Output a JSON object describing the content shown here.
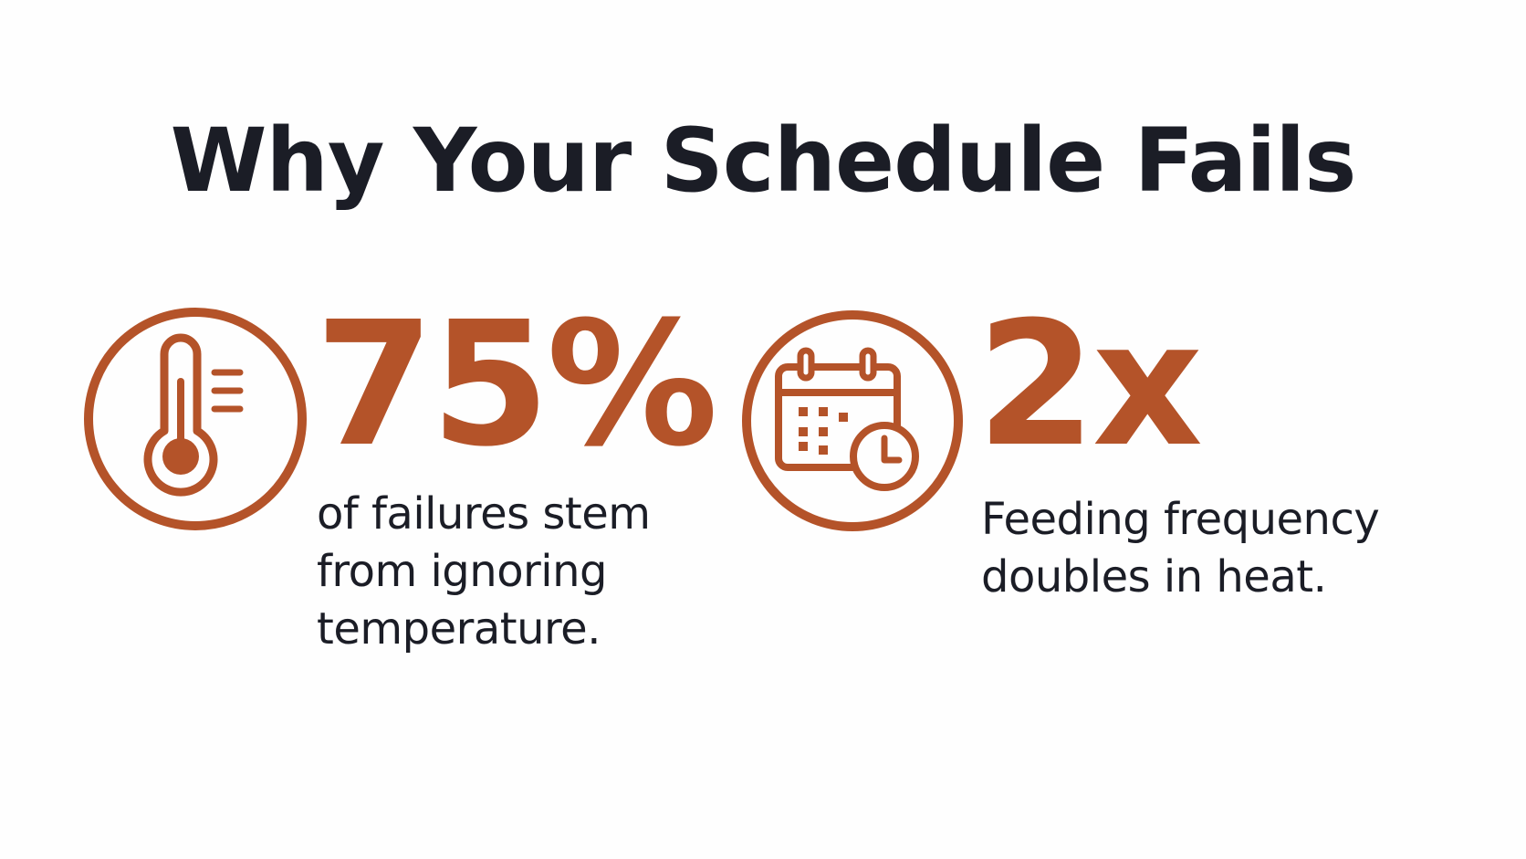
{
  "title": "Why Your Schedule Fails",
  "accent_color": "#b45329",
  "text_color": "#1b1d26",
  "stats": [
    {
      "icon": "thermometer-icon",
      "value": "75%",
      "description_lines": [
        "of failures stem",
        "from ignoring",
        "temperature."
      ]
    },
    {
      "icon": "calendar-clock-icon",
      "value": "2x",
      "description_lines": [
        "Feeding frequency",
        "doubles in heat."
      ]
    }
  ]
}
